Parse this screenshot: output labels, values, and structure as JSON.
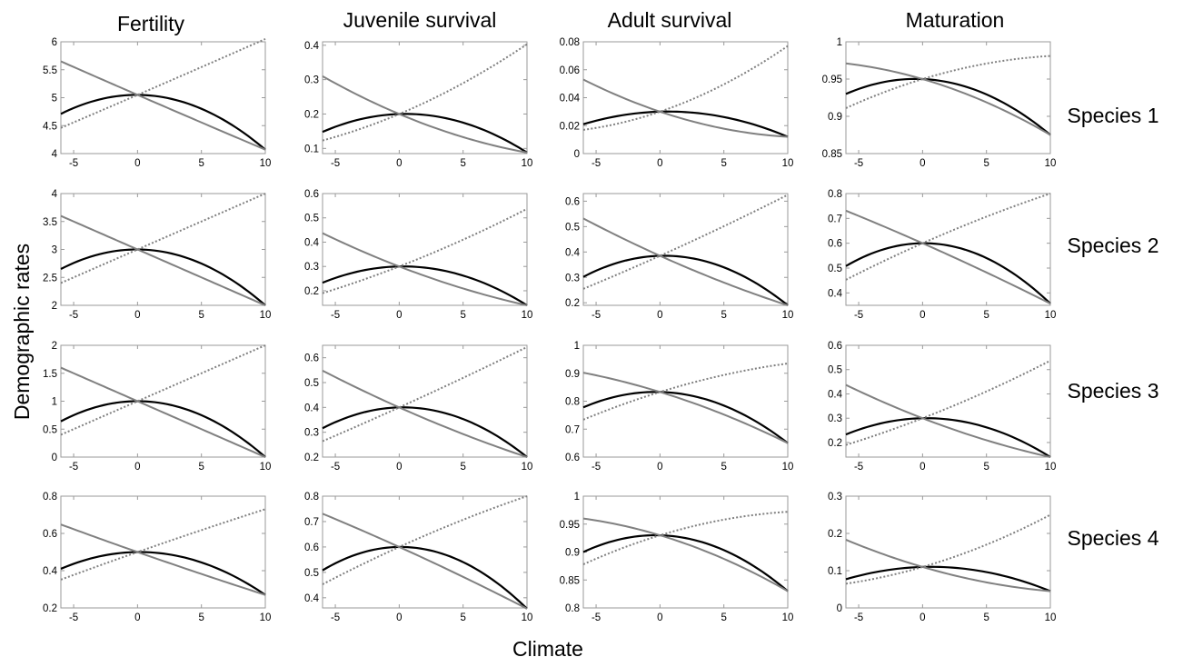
{
  "figure": {
    "ylabel": "Demographic rates",
    "xlabel": "Climate",
    "columns": [
      "Fertility",
      "Juvenile survival",
      "Adult survival",
      "Maturation"
    ],
    "rows": [
      "Species 1",
      "Species 2",
      "Species 3",
      "Species 4"
    ]
  },
  "style": {
    "series_colors": {
      "quadratic": "#000000",
      "decreasing": "#808080",
      "increasing": "#808080"
    },
    "series_dash": {
      "quadratic": "solid",
      "decreasing": "solid",
      "increasing": "dotted"
    },
    "axis_color": "#9a9a9a"
  },
  "chart_data": {
    "type": "line",
    "layout": "grid 4 rows x 4 columns",
    "x_domain": [
      -6,
      10
    ],
    "x_ticks": [
      "-5",
      "0",
      "5",
      "10"
    ],
    "grid": false,
    "legend": "none",
    "panels": [
      {
        "row": "Species 1",
        "column": "Fertility",
        "ylim": [
          4,
          6
        ],
        "yticks": [
          "4",
          "4.5",
          "5",
          "5.5",
          "6"
        ],
        "series": [
          {
            "style": "quadratic",
            "x": [
              -6,
              0,
              10
            ],
            "y": [
              4.71,
              5.05,
              4.07
            ]
          },
          {
            "style": "decreasing",
            "x": [
              -6,
              0,
              10
            ],
            "y": [
              5.65,
              5.05,
              4.07
            ]
          },
          {
            "style": "increasing",
            "x": [
              -6,
              0,
              10
            ],
            "y": [
              4.46,
              5.05,
              6.05
            ]
          }
        ]
      },
      {
        "row": "Species 1",
        "column": "Juvenile survival",
        "ylim": [
          0.085,
          0.41
        ],
        "yticks": [
          "0.1",
          "0.2",
          "0.3",
          "0.4"
        ],
        "series": [
          {
            "style": "quadratic",
            "x": [
              -6,
              0,
              10
            ],
            "y": [
              0.148,
              0.2,
              0.088
            ]
          },
          {
            "style": "decreasing",
            "x": [
              -6,
              0,
              10
            ],
            "y": [
              0.31,
              0.2,
              0.088
            ]
          },
          {
            "style": "increasing",
            "x": [
              -6,
              0,
              10
            ],
            "y": [
              0.123,
              0.2,
              0.403
            ]
          }
        ]
      },
      {
        "row": "Species 1",
        "column": "Adult survival",
        "ylim": [
          0,
          0.08
        ],
        "yticks": [
          "0",
          "0.02",
          "0.04",
          "0.06",
          "0.08"
        ],
        "series": [
          {
            "style": "quadratic",
            "x": [
              -6,
              0,
              10
            ],
            "y": [
              0.021,
              0.03,
              0.012
            ]
          },
          {
            "style": "decreasing",
            "x": [
              -6,
              0,
              10
            ],
            "y": [
              0.053,
              0.03,
              0.012
            ]
          },
          {
            "style": "increasing",
            "x": [
              -6,
              0,
              10
            ],
            "y": [
              0.017,
              0.03,
              0.077
            ]
          }
        ]
      },
      {
        "row": "Species 1",
        "column": "Maturation",
        "ylim": [
          0.85,
          1
        ],
        "yticks": [
          "0.85",
          "0.9",
          "0.95",
          "1"
        ],
        "series": [
          {
            "style": "quadratic",
            "x": [
              -6,
              0,
              10
            ],
            "y": [
              0.93,
              0.95,
              0.875
            ]
          },
          {
            "style": "decreasing",
            "x": [
              -6,
              0,
              10
            ],
            "y": [
              0.971,
              0.95,
              0.875
            ]
          },
          {
            "style": "increasing",
            "x": [
              -6,
              0,
              10
            ],
            "y": [
              0.911,
              0.95,
              0.981
            ]
          }
        ]
      },
      {
        "row": "Species 2",
        "column": "Fertility",
        "ylim": [
          2,
          4
        ],
        "yticks": [
          "2",
          "2.5",
          "3",
          "3.5",
          "4"
        ],
        "series": [
          {
            "style": "quadratic",
            "x": [
              -6,
              0,
              10
            ],
            "y": [
              2.65,
              3.0,
              2.0
            ]
          },
          {
            "style": "decreasing",
            "x": [
              -6,
              0,
              10
            ],
            "y": [
              3.6,
              3.0,
              2.0
            ]
          },
          {
            "style": "increasing",
            "x": [
              -6,
              0,
              10
            ],
            "y": [
              2.4,
              3.0,
              4.0
            ]
          }
        ]
      },
      {
        "row": "Species 2",
        "column": "Juvenile survival",
        "ylim": [
          0.14,
          0.6
        ],
        "yticks": [
          "0.2",
          "0.3",
          "0.4",
          "0.5",
          "0.6"
        ],
        "series": [
          {
            "style": "quadratic",
            "x": [
              -6,
              0,
              10
            ],
            "y": [
              0.233,
              0.3,
              0.14
            ]
          },
          {
            "style": "decreasing",
            "x": [
              -6,
              0,
              10
            ],
            "y": [
              0.437,
              0.3,
              0.14
            ]
          },
          {
            "style": "increasing",
            "x": [
              -6,
              0,
              10
            ],
            "y": [
              0.19,
              0.3,
              0.537
            ]
          }
        ]
      },
      {
        "row": "Species 2",
        "column": "Adult survival",
        "ylim": [
          0.19,
          0.63
        ],
        "yticks": [
          "0.2",
          "0.3",
          "0.4",
          "0.5",
          "0.6"
        ],
        "series": [
          {
            "style": "quadratic",
            "x": [
              -6,
              0,
              10
            ],
            "y": [
              0.302,
              0.385,
              0.19
            ]
          },
          {
            "style": "decreasing",
            "x": [
              -6,
              0,
              10
            ],
            "y": [
              0.532,
              0.385,
              0.19
            ]
          },
          {
            "style": "increasing",
            "x": [
              -6,
              0,
              10
            ],
            "y": [
              0.255,
              0.385,
              0.625
            ]
          }
        ]
      },
      {
        "row": "Species 2",
        "column": "Maturation",
        "ylim": [
          0.35,
          0.8
        ],
        "yticks": [
          "0.4",
          "0.5",
          "0.6",
          "0.7",
          "0.8"
        ],
        "series": [
          {
            "style": "quadratic",
            "x": [
              -6,
              0,
              10
            ],
            "y": [
              0.508,
              0.6,
              0.357
            ]
          },
          {
            "style": "decreasing",
            "x": [
              -6,
              0,
              10
            ],
            "y": [
              0.731,
              0.6,
              0.357
            ]
          },
          {
            "style": "increasing",
            "x": [
              -6,
              0,
              10
            ],
            "y": [
              0.453,
              0.6,
              0.8
            ]
          }
        ]
      },
      {
        "row": "Species 3",
        "column": "Fertility",
        "ylim": [
          0,
          2
        ],
        "yticks": [
          "0",
          "0.5",
          "1",
          "1.5",
          "2"
        ],
        "series": [
          {
            "style": "quadratic",
            "x": [
              -6,
              0,
              10
            ],
            "y": [
              0.64,
              1.0,
              0.0
            ]
          },
          {
            "style": "decreasing",
            "x": [
              -6,
              0,
              10
            ],
            "y": [
              1.6,
              1.0,
              0.0
            ]
          },
          {
            "style": "increasing",
            "x": [
              -6,
              0,
              10
            ],
            "y": [
              0.4,
              1.0,
              2.0
            ]
          }
        ]
      },
      {
        "row": "Species 3",
        "column": "Juvenile survival",
        "ylim": [
          0.2,
          0.65
        ],
        "yticks": [
          "0.2",
          "0.3",
          "0.4",
          "0.5",
          "0.6"
        ],
        "series": [
          {
            "style": "quadratic",
            "x": [
              -6,
              0,
              10
            ],
            "y": [
              0.316,
              0.4,
              0.2
            ]
          },
          {
            "style": "decreasing",
            "x": [
              -6,
              0,
              10
            ],
            "y": [
              0.548,
              0.4,
              0.2
            ]
          },
          {
            "style": "increasing",
            "x": [
              -6,
              0,
              10
            ],
            "y": [
              0.264,
              0.4,
              0.643
            ]
          }
        ]
      },
      {
        "row": "Species 3",
        "column": "Adult survival",
        "ylim": [
          0.6,
          1
        ],
        "yticks": [
          "0.6",
          "0.7",
          "0.8",
          "0.9",
          "1"
        ],
        "series": [
          {
            "style": "quadratic",
            "x": [
              -6,
              0,
              10
            ],
            "y": [
              0.778,
              0.833,
              0.65
            ]
          },
          {
            "style": "decreasing",
            "x": [
              -6,
              0,
              10
            ],
            "y": [
              0.902,
              0.833,
              0.65
            ]
          },
          {
            "style": "increasing",
            "x": [
              -6,
              0,
              10
            ],
            "y": [
              0.734,
              0.833,
              0.935
            ]
          }
        ]
      },
      {
        "row": "Species 3",
        "column": "Maturation",
        "ylim": [
          0.14,
          0.6
        ],
        "yticks": [
          "0.2",
          "0.3",
          "0.4",
          "0.5",
          "0.6"
        ],
        "series": [
          {
            "style": "quadratic",
            "x": [
              -6,
              0,
              10
            ],
            "y": [
              0.233,
              0.3,
              0.14
            ]
          },
          {
            "style": "decreasing",
            "x": [
              -6,
              0,
              10
            ],
            "y": [
              0.437,
              0.3,
              0.14
            ]
          },
          {
            "style": "increasing",
            "x": [
              -6,
              0,
              10
            ],
            "y": [
              0.19,
              0.3,
              0.537
            ]
          }
        ]
      },
      {
        "row": "Species 4",
        "column": "Fertility",
        "ylim": [
          0.2,
          0.8
        ],
        "yticks": [
          "0.2",
          "0.4",
          "0.6",
          "0.8"
        ],
        "series": [
          {
            "style": "quadratic",
            "x": [
              -6,
              0,
              10
            ],
            "y": [
              0.41,
              0.5,
              0.27
            ]
          },
          {
            "style": "decreasing",
            "x": [
              -6,
              0,
              10
            ],
            "y": [
              0.648,
              0.5,
              0.27
            ]
          },
          {
            "style": "increasing",
            "x": [
              -6,
              0,
              10
            ],
            "y": [
              0.352,
              0.5,
              0.73
            ]
          }
        ]
      },
      {
        "row": "Species 4",
        "column": "Juvenile survival",
        "ylim": [
          0.36,
          0.8
        ],
        "yticks": [
          "0.4",
          "0.5",
          "0.6",
          "0.7",
          "0.8"
        ],
        "series": [
          {
            "style": "quadratic",
            "x": [
              -6,
              0,
              10
            ],
            "y": [
              0.508,
              0.6,
              0.357
            ]
          },
          {
            "style": "decreasing",
            "x": [
              -6,
              0,
              10
            ],
            "y": [
              0.731,
              0.6,
              0.357
            ]
          },
          {
            "style": "increasing",
            "x": [
              -6,
              0,
              10
            ],
            "y": [
              0.453,
              0.6,
              0.8
            ]
          }
        ]
      },
      {
        "row": "Species 4",
        "column": "Adult survival",
        "ylim": [
          0.8,
          1
        ],
        "yticks": [
          "0.8",
          "0.85",
          "0.9",
          "0.95",
          "1"
        ],
        "series": [
          {
            "style": "quadratic",
            "x": [
              -6,
              0,
              10
            ],
            "y": [
              0.9,
              0.93,
              0.83
            ]
          },
          {
            "style": "decreasing",
            "x": [
              -6,
              0,
              10
            ],
            "y": [
              0.96,
              0.93,
              0.83
            ]
          },
          {
            "style": "increasing",
            "x": [
              -6,
              0,
              10
            ],
            "y": [
              0.878,
              0.93,
              0.972
            ]
          }
        ]
      },
      {
        "row": "Species 4",
        "column": "Maturation",
        "ylim": [
          0,
          0.3
        ],
        "yticks": [
          "0",
          "0.1",
          "0.2",
          "0.3"
        ],
        "series": [
          {
            "style": "quadratic",
            "x": [
              -6,
              0,
              10
            ],
            "y": [
              0.077,
              0.11,
              0.045
            ]
          },
          {
            "style": "decreasing",
            "x": [
              -6,
              0,
              10
            ],
            "y": [
              0.183,
              0.11,
              0.045
            ]
          },
          {
            "style": "increasing",
            "x": [
              -6,
              0,
              10
            ],
            "y": [
              0.065,
              0.11,
              0.25
            ]
          }
        ]
      }
    ]
  }
}
